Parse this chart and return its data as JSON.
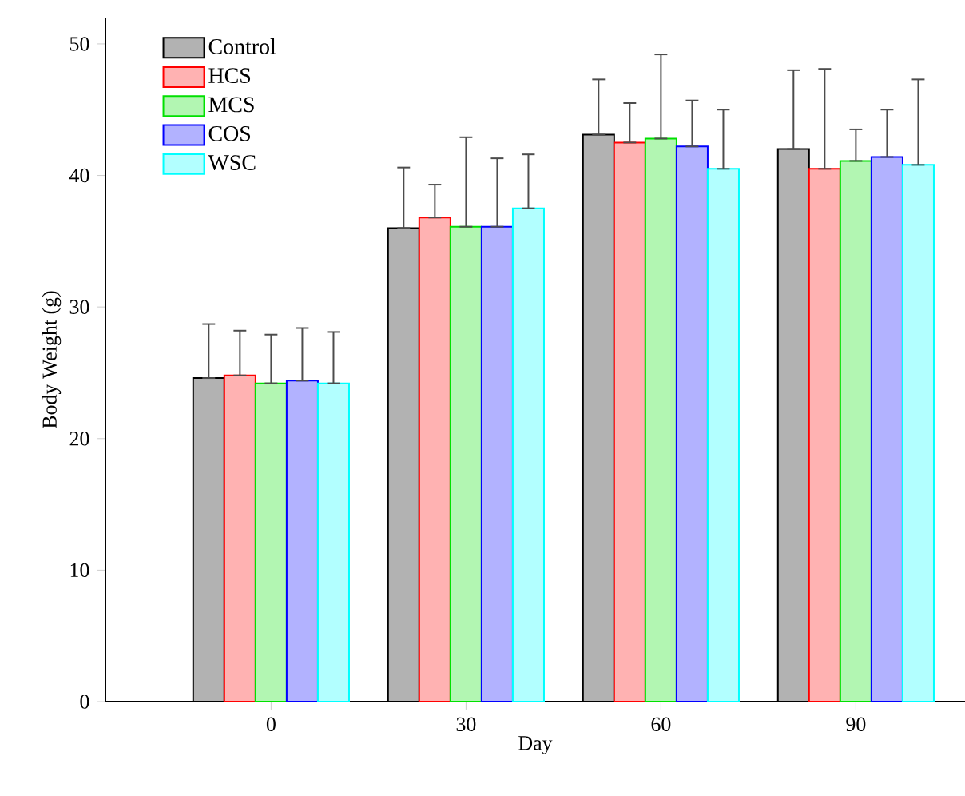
{
  "chart_data": {
    "type": "bar",
    "xlabel": "Day",
    "ylabel": "Body Weight (g)",
    "categories": [
      "0",
      "30",
      "60",
      "90"
    ],
    "series": [
      {
        "name": "Control",
        "color": "#000000",
        "values": [
          24.6,
          36.0,
          43.1,
          42.0
        ],
        "errors": [
          [
            24.6,
            28.7
          ],
          [
            36.0,
            40.6
          ],
          [
            43.1,
            47.3
          ],
          [
            42.0,
            48.0
          ]
        ]
      },
      {
        "name": "HCS",
        "color": "#ff0000",
        "values": [
          24.8,
          36.8,
          42.5,
          40.5
        ],
        "errors": [
          [
            24.8,
            28.2
          ],
          [
            36.8,
            39.3
          ],
          [
            42.5,
            45.5
          ],
          [
            40.5,
            48.1
          ]
        ]
      },
      {
        "name": "MCS",
        "color": "#00e000",
        "values": [
          24.2,
          36.1,
          42.8,
          41.1
        ],
        "errors": [
          [
            24.2,
            27.9
          ],
          [
            36.1,
            42.9
          ],
          [
            42.8,
            49.2
          ],
          [
            41.1,
            43.5
          ]
        ]
      },
      {
        "name": "COS",
        "color": "#0000ff",
        "values": [
          24.4,
          36.1,
          42.2,
          41.4
        ],
        "errors": [
          [
            24.4,
            28.4
          ],
          [
            36.1,
            41.3
          ],
          [
            42.2,
            45.7
          ],
          [
            41.4,
            45.0
          ]
        ]
      },
      {
        "name": "WSC",
        "color": "#00ffff",
        "values": [
          24.2,
          37.5,
          40.5,
          40.8
        ],
        "errors": [
          [
            24.2,
            28.1
          ],
          [
            37.5,
            41.6
          ],
          [
            40.5,
            45.0
          ],
          [
            40.8,
            47.3
          ]
        ]
      }
    ],
    "ylim": [
      0,
      52
    ],
    "yticks": [
      0,
      10,
      20,
      30,
      40,
      50
    ],
    "grid": false,
    "legend": "top left"
  }
}
